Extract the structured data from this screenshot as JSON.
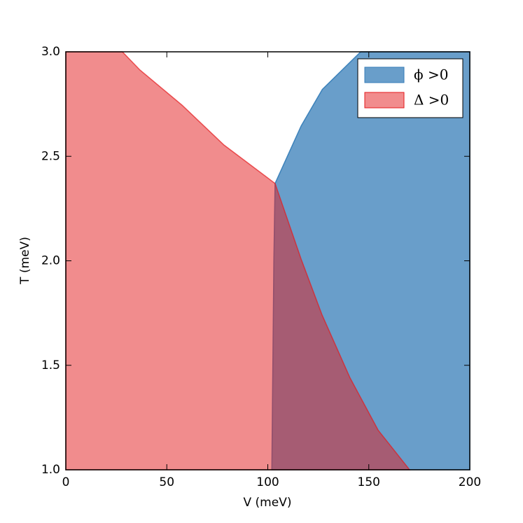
{
  "chart_data": {
    "type": "area",
    "x_label": "V (meV)",
    "y_label": "T (meV)",
    "xlim": [
      0,
      200
    ],
    "xticks": [
      0,
      50,
      100,
      150,
      200
    ],
    "ylim": [
      1,
      3
    ],
    "yticks": [
      {
        "value": 1,
        "label": "1.0"
      },
      1.5,
      {
        "value": 2,
        "label": "2.0"
      },
      2.5,
      {
        "value": 3,
        "label": "3.0"
      }
    ],
    "legend": "upper right",
    "series": [
      {
        "name": "ϕ >0",
        "color": "#377eb8",
        "alpha": 0.75,
        "x": [
          102,
          103,
          103.6,
          116.5,
          127,
          146,
          200,
          200
        ],
        "values": [
          1,
          2,
          2.37,
          2.645,
          2.82,
          3,
          3,
          1
        ]
      },
      {
        "name": "Δ >0",
        "color": "#e41a1c",
        "alpha": 0.5,
        "x": [
          0,
          0,
          28,
          36.7,
          57.5,
          78.3,
          103.6,
          116.5,
          126.9,
          140.7,
          154.6,
          170.2
        ],
        "values": [
          1,
          3,
          3,
          2.913,
          2.745,
          2.554,
          2.37,
          2.008,
          1.74,
          1.44,
          1.19,
          1
        ]
      }
    ]
  }
}
